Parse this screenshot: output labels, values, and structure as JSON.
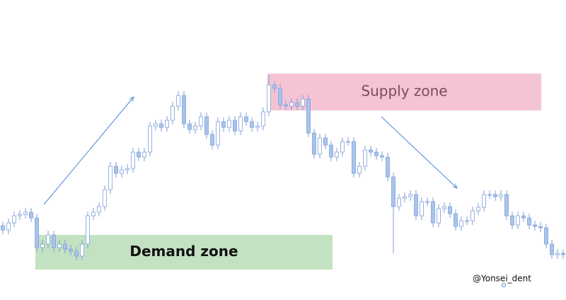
{
  "chart_data": {
    "type": "candlestick",
    "ylim": [
      0,
      424
    ],
    "up_color": "#ffffff",
    "down_color": "#a9c4ec",
    "line_color": "#7f9fd8",
    "open": [
      105,
      99,
      109,
      119,
      121,
      124,
      116,
      74,
      79,
      92,
      74,
      79,
      72,
      69,
      62,
      79,
      119,
      124,
      132,
      156,
      189,
      179,
      184,
      186,
      209,
      202,
      209,
      246,
      249,
      244,
      254,
      274,
      289,
      249,
      241,
      246,
      259,
      234,
      219,
      252,
      244,
      254,
      239,
      259,
      252,
      244,
      246,
      266,
      304,
      299,
      276,
      274,
      279,
      274,
      284,
      236,
      206,
      229,
      219,
      202,
      209,
      224,
      224,
      179,
      189,
      212,
      209,
      204,
      202,
      174,
      132,
      144,
      146,
      149,
      119,
      139,
      139,
      109,
      129,
      132,
      122,
      104,
      112,
      112,
      126,
      131,
      149,
      149,
      146,
      149,
      119,
      106,
      119,
      116,
      106,
      104,
      102,
      79,
      64,
      66
    ],
    "high": [
      111,
      115,
      125,
      127,
      130,
      130,
      122,
      85,
      98,
      98,
      85,
      85,
      78,
      75,
      85,
      125,
      130,
      138,
      162,
      195,
      195,
      190,
      192,
      215,
      215,
      215,
      252,
      255,
      255,
      260,
      280,
      295,
      295,
      255,
      252,
      265,
      265,
      240,
      258,
      258,
      260,
      260,
      265,
      265,
      258,
      252,
      272,
      318,
      310,
      305,
      282,
      285,
      285,
      290,
      290,
      242,
      235,
      235,
      225,
      215,
      230,
      230,
      230,
      195,
      218,
      218,
      215,
      210,
      208,
      180,
      150,
      152,
      155,
      155,
      145,
      145,
      145,
      135,
      138,
      138,
      128,
      118,
      118,
      132,
      137,
      155,
      155,
      155,
      155,
      155,
      125,
      125,
      125,
      122,
      112,
      110,
      108,
      85,
      72,
      72
    ],
    "low": [
      93,
      93,
      103,
      113,
      115,
      110,
      68,
      68,
      73,
      68,
      68,
      66,
      63,
      56,
      56,
      73,
      113,
      118,
      126,
      150,
      173,
      173,
      178,
      180,
      196,
      196,
      203,
      240,
      238,
      238,
      248,
      268,
      243,
      235,
      235,
      240,
      228,
      213,
      213,
      238,
      238,
      233,
      233,
      246,
      238,
      238,
      240,
      260,
      293,
      270,
      268,
      268,
      268,
      268,
      230,
      200,
      200,
      213,
      196,
      196,
      203,
      218,
      173,
      173,
      183,
      203,
      198,
      196,
      168,
      66,
      126,
      138,
      140,
      113,
      113,
      133,
      103,
      103,
      123,
      116,
      98,
      98,
      106,
      106,
      120,
      125,
      143,
      140,
      140,
      113,
      100,
      100,
      110,
      100,
      98,
      96,
      73,
      58,
      58,
      58
    ],
    "close": [
      99,
      109,
      119,
      121,
      124,
      116,
      74,
      79,
      92,
      74,
      79,
      72,
      69,
      62,
      79,
      119,
      124,
      132,
      156,
      189,
      179,
      184,
      186,
      209,
      202,
      209,
      246,
      249,
      244,
      254,
      274,
      289,
      249,
      241,
      246,
      259,
      234,
      219,
      252,
      244,
      254,
      239,
      259,
      252,
      244,
      246,
      266,
      304,
      299,
      276,
      274,
      279,
      274,
      284,
      236,
      206,
      229,
      219,
      202,
      209,
      224,
      224,
      179,
      189,
      212,
      209,
      204,
      202,
      174,
      132,
      144,
      146,
      149,
      119,
      139,
      139,
      109,
      129,
      132,
      122,
      104,
      112,
      112,
      126,
      131,
      149,
      149,
      146,
      149,
      119,
      106,
      119,
      116,
      106,
      104,
      102,
      79,
      64,
      66,
      64
    ],
    "zones": [
      {
        "label": "Supply zone",
        "low": 268,
        "high": 320,
        "color": "#f4c4d5"
      },
      {
        "label": "Demand zone",
        "low": 43,
        "high": 92,
        "color": "#c3e2c2"
      }
    ],
    "watermark": "@Yonsei_dent"
  }
}
